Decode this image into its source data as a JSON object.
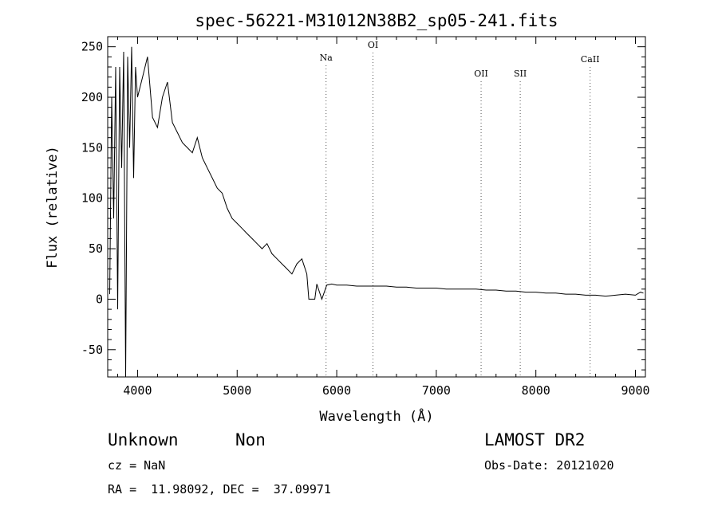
{
  "chart_data": {
    "type": "line",
    "title": "spec-56221-M31012N38B2_sp05-241.fits",
    "xlabel": "Wavelength (Å)",
    "ylabel": "Flux (relative)",
    "xlim": [
      3700,
      9100
    ],
    "ylim": [
      -77,
      260
    ],
    "x_ticks": [
      4000,
      5000,
      6000,
      7000,
      8000,
      9000
    ],
    "y_ticks": [
      -50,
      0,
      50,
      100,
      150,
      200,
      250
    ],
    "grid": false,
    "lines": [
      {
        "label": "Na",
        "x": 5893
      },
      {
        "label": "OI",
        "x": 6364
      },
      {
        "label": "OII",
        "x": 7450
      },
      {
        "label": "SII",
        "x": 7843
      },
      {
        "label": "CaII",
        "x": 8545
      }
    ],
    "series": [
      {
        "x": [
          3720,
          3740,
          3760,
          3780,
          3800,
          3820,
          3840,
          3860,
          3880,
          3900,
          3920,
          3940,
          3960,
          3980,
          4000,
          4050,
          4100,
          4150,
          4200,
          4250,
          4300,
          4350,
          4400,
          4450,
          4500,
          4550,
          4600,
          4650,
          4700,
          4750,
          4800,
          4850,
          4900,
          4950,
          5000,
          5050,
          5100,
          5150,
          5200,
          5250,
          5300,
          5350,
          5400,
          5450,
          5500,
          5550,
          5600,
          5650,
          5700,
          5720,
          5750,
          5780,
          5800,
          5850,
          5900,
          5950,
          6000,
          6100,
          6200,
          6300,
          6400,
          6500,
          6600,
          6700,
          6800,
          6900,
          7000,
          7100,
          7200,
          7300,
          7400,
          7500,
          7600,
          7700,
          7800,
          7900,
          8000,
          8100,
          8200,
          8300,
          8400,
          8500,
          8600,
          8700,
          8800,
          8900,
          9000,
          9050,
          9080
        ],
        "y": [
          5,
          200,
          80,
          230,
          -10,
          230,
          130,
          245,
          -77,
          240,
          150,
          250,
          120,
          230,
          200,
          220,
          240,
          180,
          170,
          200,
          215,
          175,
          165,
          155,
          150,
          145,
          160,
          140,
          130,
          120,
          110,
          105,
          90,
          80,
          75,
          70,
          65,
          60,
          55,
          50,
          55,
          45,
          40,
          35,
          30,
          25,
          35,
          40,
          25,
          0,
          0,
          0,
          15,
          0,
          14,
          15,
          14,
          14,
          13,
          13,
          13,
          13,
          12,
          12,
          11,
          11,
          11,
          10,
          10,
          10,
          10,
          9,
          9,
          8,
          8,
          7,
          7,
          6,
          6,
          5,
          5,
          4,
          4,
          3,
          4,
          5,
          4,
          7,
          6
        ]
      }
    ]
  },
  "info": {
    "class_label": "Unknown",
    "subclass_label": "Non",
    "survey": "LAMOST DR2",
    "cz": "cz = NaN",
    "obs_date": "Obs-Date: 20121020",
    "coords": "RA =  11.98092, DEC =  37.09971"
  }
}
